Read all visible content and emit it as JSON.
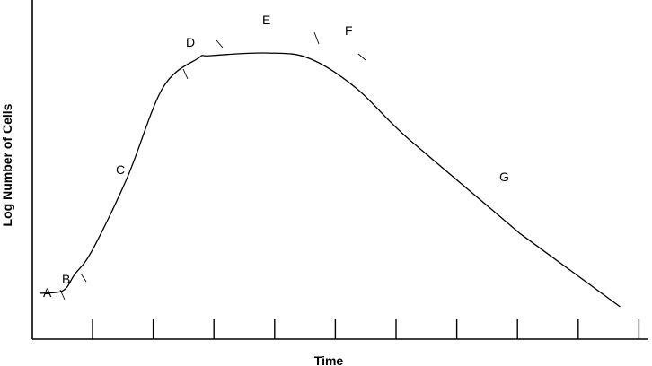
{
  "chart_data": {
    "type": "line",
    "title": "",
    "xlabel": "Time",
    "ylabel": "Log Number of Cells",
    "x_ticks": 10,
    "grid": false,
    "legend": "none",
    "series": [
      {
        "values": [
          [
            0.0,
            0.05
          ],
          [
            0.04,
            0.06
          ],
          [
            0.06,
            0.12
          ],
          [
            0.09,
            0.21
          ],
          [
            0.15,
            0.48
          ],
          [
            0.21,
            0.81
          ],
          [
            0.27,
            0.92
          ],
          [
            0.29,
            0.93
          ],
          [
            0.39,
            0.94
          ],
          [
            0.46,
            0.92
          ],
          [
            0.54,
            0.81
          ],
          [
            0.63,
            0.62
          ],
          [
            0.82,
            0.27
          ],
          [
            0.99,
            0.0
          ]
        ]
      }
    ],
    "phases": [
      "A",
      "B",
      "C",
      "D",
      "E",
      "F",
      "G"
    ]
  }
}
